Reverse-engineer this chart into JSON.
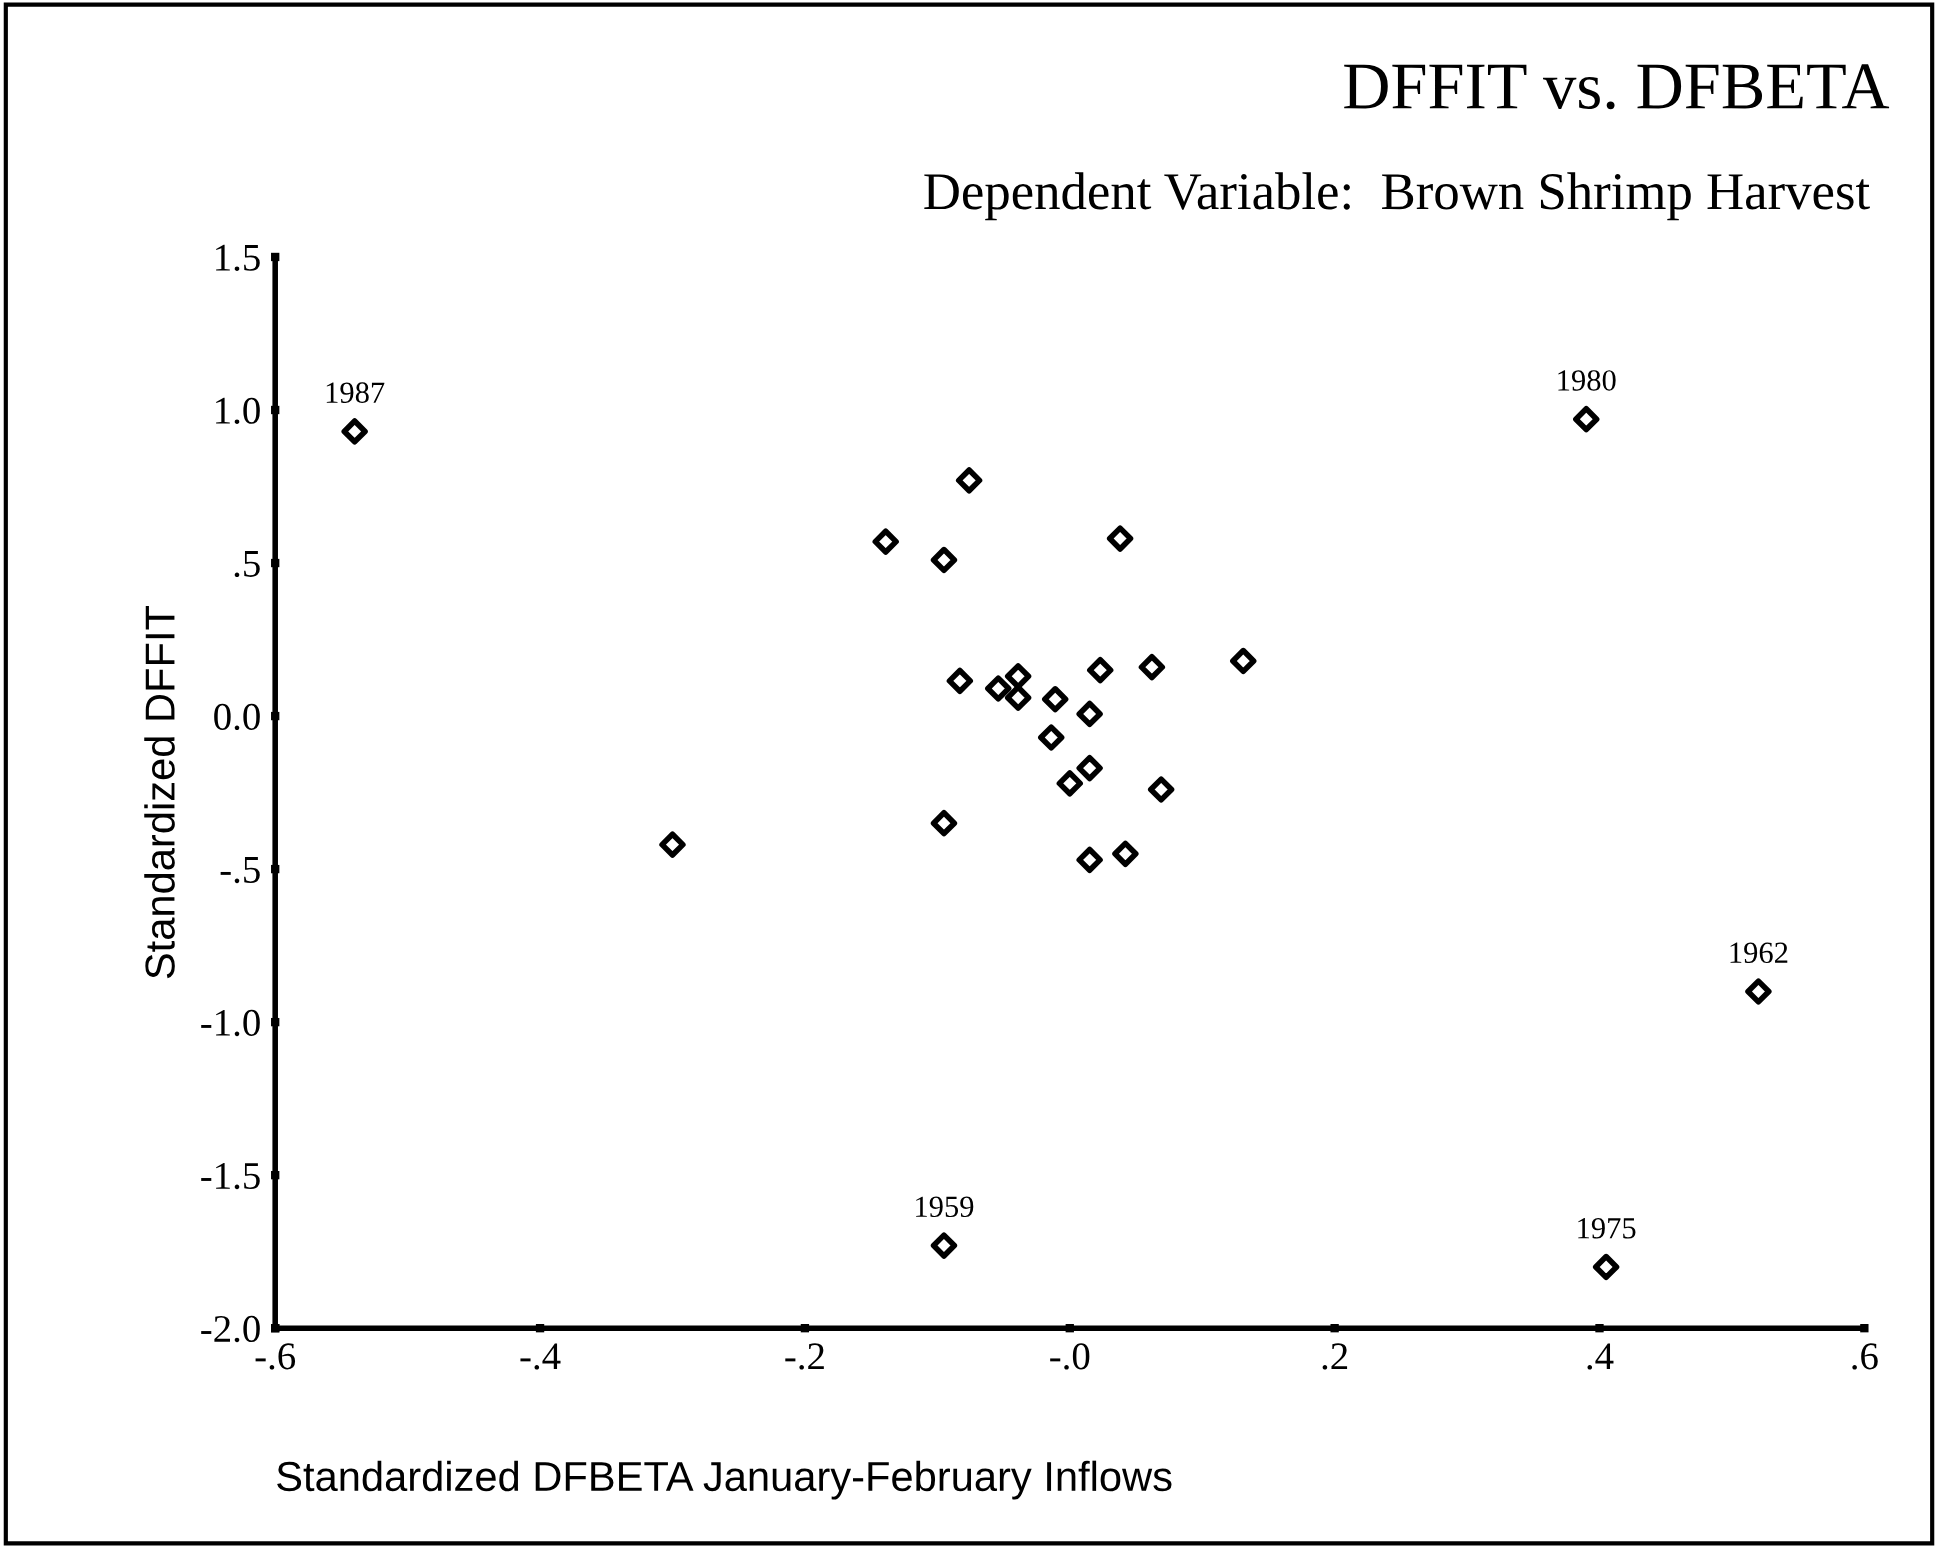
{
  "chart_data": {
    "type": "scatter",
    "title": "DFFIT vs. DFBETA",
    "subtitle": "Dependent Variable:  Brown Shrimp Harvest",
    "xlabel": "Standardized DFBETA January-February Inflows",
    "ylabel": "Standardized DFFIT",
    "x": [
      -0.54,
      0.39,
      0.52,
      0.405,
      -0.095,
      -0.3,
      -0.076,
      -0.139,
      -0.095,
      0.038,
      -0.083,
      -0.054,
      -0.039,
      -0.039,
      -0.011,
      0.023,
      0.062,
      0.131,
      0.015,
      -0.014,
      0.015,
      0.0,
      0.069,
      -0.095,
      0.015,
      0.042
    ],
    "values": [
      0.93,
      0.97,
      -0.9,
      -1.8,
      -1.73,
      -0.42,
      0.77,
      0.57,
      0.51,
      0.58,
      0.115,
      0.09,
      0.13,
      0.06,
      0.055,
      0.15,
      0.16,
      0.18,
      0.007,
      -0.07,
      -0.17,
      -0.22,
      -0.24,
      -0.35,
      -0.47,
      -0.45
    ],
    "color": "#000000",
    "marker": "diamond",
    "annotations": [
      {
        "text": "1987",
        "x": -0.54,
        "y": 0.93
      },
      {
        "text": "1980",
        "x": 0.39,
        "y": 0.97
      },
      {
        "text": "1962",
        "x": 0.52,
        "y": -0.9
      },
      {
        "text": "1975",
        "x": 0.405,
        "y": -1.8
      },
      {
        "text": "1959",
        "x": -0.095,
        "y": -1.73
      }
    ],
    "xlim": [
      -0.6,
      0.6
    ],
    "ylim": [
      -2.0,
      1.5
    ],
    "xticks": [
      {
        "value": -0.6,
        "label": "-.6"
      },
      {
        "value": -0.4,
        "label": "-.4"
      },
      {
        "value": -0.2,
        "label": "-.2"
      },
      {
        "value": 0.0,
        "label": "-.0"
      },
      {
        "value": 0.2,
        "label": ".2"
      },
      {
        "value": 0.4,
        "label": ".4"
      },
      {
        "value": 0.6,
        "label": ".6"
      }
    ],
    "yticks": [
      {
        "value": 1.5,
        "label": "1.5"
      },
      {
        "value": 1.0,
        "label": "1.0"
      },
      {
        "value": 0.5,
        "label": ".5"
      },
      {
        "value": 0.0,
        "label": "0.0"
      },
      {
        "value": -0.5,
        "label": "-.5"
      },
      {
        "value": -1.0,
        "label": "-1.0"
      },
      {
        "value": -1.5,
        "label": "-1.5"
      },
      {
        "value": -2.0,
        "label": "-2.0"
      }
    ],
    "grid": false,
    "legend": false
  }
}
